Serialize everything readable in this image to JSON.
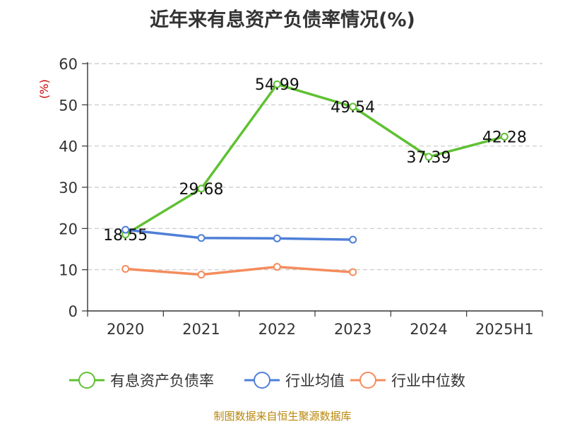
{
  "chart_data": {
    "type": "line",
    "title": "近年来有息资产负债率情况(%)",
    "ylabel": "(%)",
    "xlabel": "",
    "categories": [
      "2020",
      "2021",
      "2022",
      "2023",
      "2024",
      "2025H1"
    ],
    "ylim": [
      0,
      60
    ],
    "yticks": [
      0,
      10,
      20,
      30,
      40,
      50,
      60
    ],
    "grid": "horizontal-dashed",
    "legend_position": "bottom",
    "series": [
      {
        "name": "有息资产负债率",
        "color": "#5fc132",
        "values": [
          18.55,
          29.68,
          54.99,
          49.54,
          37.39,
          42.28
        ],
        "labels": [
          "18.55",
          "29.68",
          "54.99",
          "49.54",
          "37.39",
          "42.28"
        ]
      },
      {
        "name": "行业均值",
        "color": "#4e7fd8",
        "values": [
          19.7,
          17.7,
          17.6,
          17.3,
          null,
          null
        ]
      },
      {
        "name": "行业中位数",
        "color": "#f48c5c",
        "values": [
          10.2,
          8.8,
          10.7,
          9.4,
          null,
          null
        ]
      }
    ]
  },
  "footer": {
    "source": "制图数据来自恒生聚源数据库"
  }
}
